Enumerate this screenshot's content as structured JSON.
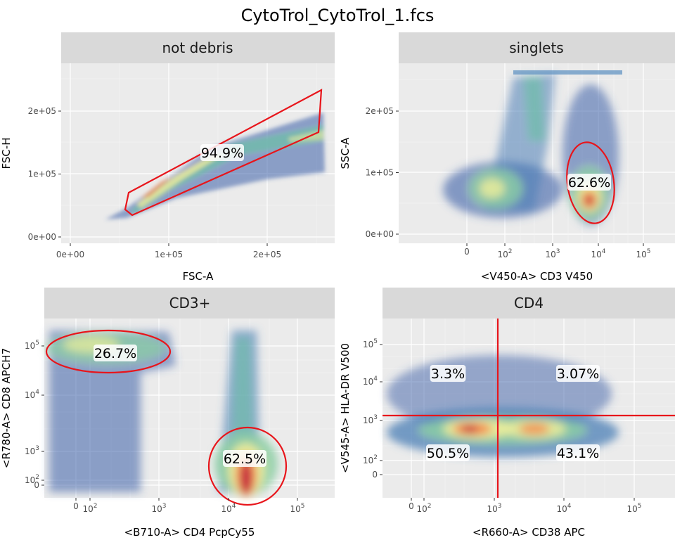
{
  "figure_title": "CytoTrol_CytoTrol_1.fcs",
  "chart_data": [
    {
      "type": "scatter",
      "subtype": "flow-cytometry-density",
      "panel": "not debris",
      "xlabel": "FSC-A",
      "ylabel": "FSC-H",
      "x_scale": "linear",
      "y_scale": "linear",
      "xlim": [
        -5000,
        270000
      ],
      "ylim": [
        -5000,
        265000
      ],
      "x_ticks": [
        {
          "v": 0,
          "label": "0e+00"
        },
        {
          "v": 100000,
          "label": "1e+05"
        },
        {
          "v": 200000,
          "label": "2e+05"
        }
      ],
      "y_ticks": [
        {
          "v": 0,
          "label": "0e+00"
        },
        {
          "v": 100000,
          "label": "1e+05"
        },
        {
          "v": 200000,
          "label": "2e+05"
        }
      ],
      "gate": {
        "shape": "polygon",
        "points": [
          [
            60000,
            70000
          ],
          [
            255000,
            235000
          ],
          [
            260000,
            170000
          ],
          [
            64000,
            34000
          ],
          [
            55000,
            42000
          ]
        ]
      },
      "annotations": [
        {
          "text": "94.9%",
          "x": 152000,
          "y": 130000
        }
      ],
      "density": [
        {
          "x": 70000,
          "y": 50000,
          "level": 0.55
        },
        {
          "x": 90000,
          "y": 65000,
          "level": 0.8
        },
        {
          "x": 110000,
          "y": 82000,
          "level": 0.75
        },
        {
          "x": 140000,
          "y": 105000,
          "level": 0.5
        },
        {
          "x": 175000,
          "y": 135000,
          "level": 0.4
        },
        {
          "x": 215000,
          "y": 170000,
          "level": 0.3
        },
        {
          "x": 250000,
          "y": 170000,
          "level": 0.25
        }
      ]
    },
    {
      "type": "scatter",
      "subtype": "flow-cytometry-density",
      "panel": "singlets",
      "xlabel": "<V450-A> CD3 V450",
      "ylabel": "SSC-A",
      "x_scale": "biexponential",
      "y_scale": "linear",
      "ylim": [
        -5000,
        265000
      ],
      "x_ticks": [
        {
          "v": 0,
          "label": "0"
        },
        {
          "v": 100,
          "label": "10^2"
        },
        {
          "v": 1000,
          "label": "10^3"
        },
        {
          "v": 10000,
          "label": "10^4"
        },
        {
          "v": 100000,
          "label": "10^5"
        }
      ],
      "y_ticks": [
        {
          "v": 0,
          "label": "0e+00"
        },
        {
          "v": 100000,
          "label": "1e+05"
        },
        {
          "v": 200000,
          "label": "2e+05"
        }
      ],
      "gate": {
        "shape": "ellipse",
        "center": [
          6000,
          60000
        ],
        "label_pos": [
          7000,
          85000
        ]
      },
      "annotations": [
        {
          "text": "62.6%",
          "x": 7000,
          "y": 85000
        }
      ],
      "density": [
        {
          "x": 150,
          "y": 80000,
          "level": 0.55
        },
        {
          "x": 300,
          "y": 150000,
          "level": 0.35
        },
        {
          "x": 6000,
          "y": 60000,
          "level": 1.0
        },
        {
          "x": 6000,
          "y": 150000,
          "level": 0.25
        }
      ]
    },
    {
      "type": "scatter",
      "subtype": "flow-cytometry-density",
      "panel": "CD3+",
      "xlabel": "<B710-A> CD4 PcpCy55",
      "ylabel": "<R780-A> CD8 APCH7",
      "x_scale": "biexponential",
      "y_scale": "biexponential",
      "x_ticks": [
        {
          "v": 0,
          "label": "0"
        },
        {
          "v": 100,
          "label": "10^2"
        },
        {
          "v": 1000,
          "label": "10^3"
        },
        {
          "v": 10000,
          "label": "10^4"
        },
        {
          "v": 100000,
          "label": "10^5"
        }
      ],
      "y_ticks": [
        {
          "v": 0,
          "label": "0"
        },
        {
          "v": 100,
          "label": "10^2"
        },
        {
          "v": 1000,
          "label": "10^3"
        },
        {
          "v": 10000,
          "label": "10^4"
        },
        {
          "v": 100000,
          "label": "10^5"
        }
      ],
      "gates": [
        {
          "name": "CD8",
          "shape": "ellipse",
          "center": [
            200,
            100000
          ]
        },
        {
          "name": "CD4",
          "shape": "ellipse",
          "center": [
            20000,
            300
          ]
        }
      ],
      "annotations": [
        {
          "text": "26.7%",
          "x": 250,
          "y": 100000
        },
        {
          "text": "62.5%",
          "x": 20000,
          "y": 900
        }
      ],
      "density": [
        {
          "x": 200,
          "y": 100000,
          "level": 0.6
        },
        {
          "x": 100,
          "y": 1000,
          "level": 0.35
        },
        {
          "x": 20000,
          "y": 5000,
          "level": 0.4
        },
        {
          "x": 20000,
          "y": 200,
          "level": 1.0
        }
      ]
    },
    {
      "type": "scatter",
      "subtype": "flow-cytometry-density",
      "panel": "CD4",
      "xlabel": "<R660-A> CD38 APC",
      "ylabel": "<V545-A> HLA-DR V500",
      "x_scale": "biexponential",
      "y_scale": "biexponential",
      "x_ticks": [
        {
          "v": 0,
          "label": "0"
        },
        {
          "v": 100,
          "label": "10^2"
        },
        {
          "v": 1000,
          "label": "10^3"
        },
        {
          "v": 10000,
          "label": "10^4"
        },
        {
          "v": 100000,
          "label": "10^5"
        }
      ],
      "y_ticks": [
        {
          "v": 0,
          "label": "0"
        },
        {
          "v": 100,
          "label": "10^2"
        },
        {
          "v": 1000,
          "label": "10^3"
        },
        {
          "v": 10000,
          "label": "10^4"
        },
        {
          "v": 100000,
          "label": "10^5"
        }
      ],
      "gate": {
        "shape": "quadrant",
        "x": 1200,
        "y": 1200
      },
      "annotations": [
        {
          "text": "3.3%",
          "quadrant": "upper-left"
        },
        {
          "text": "3.07%",
          "quadrant": "upper-right"
        },
        {
          "text": "50.5%",
          "quadrant": "lower-left"
        },
        {
          "text": "43.1%",
          "quadrant": "lower-right"
        }
      ],
      "density": [
        {
          "x": 500,
          "y": 500,
          "level": 1.0
        },
        {
          "x": 4000,
          "y": 500,
          "level": 0.85
        },
        {
          "x": 150,
          "y": 400,
          "level": 0.4
        },
        {
          "x": 20000,
          "y": 400,
          "level": 0.35
        }
      ]
    }
  ]
}
